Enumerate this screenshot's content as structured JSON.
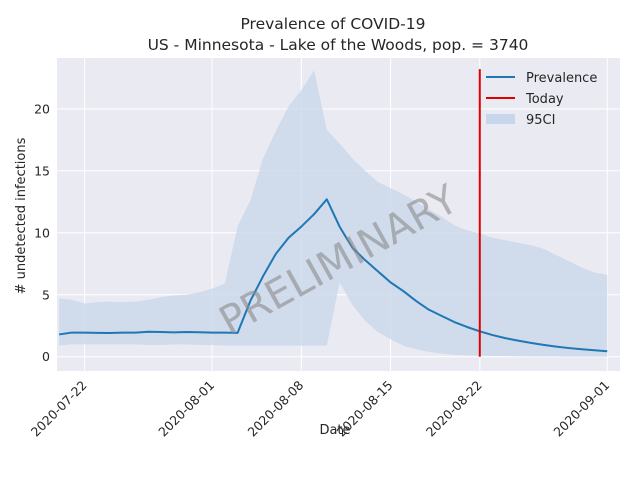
{
  "chart_data": {
    "type": "line",
    "title": "Prevalence of COVID-19",
    "subtitle": "US - Minnesota - Lake of the Woods, pop. = 3740",
    "xlabel": "Date",
    "ylabel": "# undetected infections",
    "xlim": [
      "2020-07-19T20:00",
      "2020-09-02T00:00"
    ],
    "ylim": [
      -1.15,
      24.1
    ],
    "x_ticks": [
      "2020-07-22",
      "2020-08-01",
      "2020-08-08",
      "2020-08-15",
      "2020-08-22",
      "2020-09-01"
    ],
    "y_ticks": [
      0,
      5,
      10,
      15,
      20
    ],
    "grid": true,
    "legend_position": "top-right",
    "watermark": "PRELIMINARY",
    "series": [
      {
        "name": "Prevalence",
        "color": "#1f77b4",
        "x": [
          "2020-07-20",
          "2020-07-21",
          "2020-07-22",
          "2020-07-23",
          "2020-07-24",
          "2020-07-25",
          "2020-07-26",
          "2020-07-27",
          "2020-07-28",
          "2020-07-29",
          "2020-07-30",
          "2020-07-31",
          "2020-08-01",
          "2020-08-02",
          "2020-08-03",
          "2020-08-04",
          "2020-08-05",
          "2020-08-06",
          "2020-08-07",
          "2020-08-08",
          "2020-08-09",
          "2020-08-10",
          "2020-08-11",
          "2020-08-12",
          "2020-08-13",
          "2020-08-14",
          "2020-08-15",
          "2020-08-16",
          "2020-08-17",
          "2020-08-18",
          "2020-08-19",
          "2020-08-20",
          "2020-08-21",
          "2020-08-22",
          "2020-08-23",
          "2020-08-24",
          "2020-08-25",
          "2020-08-26",
          "2020-08-27",
          "2020-08-28",
          "2020-08-29",
          "2020-08-30",
          "2020-08-31",
          "2020-09-01"
        ],
        "values": [
          1.8,
          1.95,
          1.95,
          1.93,
          1.92,
          1.95,
          1.95,
          2.02,
          2.0,
          1.97,
          2.0,
          1.98,
          1.95,
          1.95,
          1.93,
          4.5,
          6.5,
          8.3,
          9.6,
          10.5,
          11.5,
          12.7,
          10.5,
          8.8,
          7.8,
          6.9,
          6.0,
          5.3,
          4.5,
          3.8,
          3.3,
          2.8,
          2.4,
          2.05,
          1.75,
          1.5,
          1.3,
          1.12,
          0.96,
          0.82,
          0.7,
          0.6,
          0.52,
          0.44
        ]
      },
      {
        "name": "Today",
        "color": "#e00000",
        "x": [
          "2020-08-22",
          "2020-08-22"
        ],
        "values": [
          0,
          23.2
        ]
      }
    ],
    "band": {
      "name": "95CI",
      "color": "#c7d6ea",
      "x": [
        "2020-07-20",
        "2020-07-21",
        "2020-07-22",
        "2020-07-23",
        "2020-07-24",
        "2020-07-25",
        "2020-07-26",
        "2020-07-27",
        "2020-07-28",
        "2020-07-29",
        "2020-07-30",
        "2020-07-31",
        "2020-08-01",
        "2020-08-02",
        "2020-08-03",
        "2020-08-04",
        "2020-08-05",
        "2020-08-06",
        "2020-08-07",
        "2020-08-08",
        "2020-08-09",
        "2020-08-10",
        "2020-08-11",
        "2020-08-12",
        "2020-08-13",
        "2020-08-14",
        "2020-08-15",
        "2020-08-16",
        "2020-08-17",
        "2020-08-18",
        "2020-08-19",
        "2020-08-20",
        "2020-08-21",
        "2020-08-22",
        "2020-08-23",
        "2020-08-24",
        "2020-08-25",
        "2020-08-26",
        "2020-08-27",
        "2020-08-28",
        "2020-08-29",
        "2020-08-30",
        "2020-08-31",
        "2020-09-01"
      ],
      "lower": [
        0.9,
        1.0,
        1.0,
        1.0,
        1.0,
        1.0,
        1.0,
        0.95,
        0.95,
        1.0,
        1.0,
        0.95,
        0.95,
        0.9,
        0.9,
        0.9,
        0.9,
        0.9,
        0.9,
        0.9,
        0.9,
        0.9,
        6.0,
        4.2,
        2.9,
        2.0,
        1.4,
        0.9,
        0.6,
        0.4,
        0.25,
        0.15,
        0.1,
        0.08,
        0.06,
        0.05,
        0.04,
        0.03,
        0.02,
        0.02,
        0.01,
        0.01,
        0.01,
        0.01
      ],
      "upper": [
        4.7,
        4.6,
        4.3,
        4.4,
        4.45,
        4.4,
        4.45,
        4.6,
        4.8,
        4.95,
        5.0,
        5.2,
        5.5,
        5.9,
        10.5,
        12.6,
        16.0,
        18.2,
        20.2,
        21.5,
        23.1,
        18.3,
        17.2,
        16.0,
        15.0,
        14.1,
        13.6,
        13.1,
        12.5,
        11.9,
        11.3,
        10.6,
        10.2,
        9.95,
        9.6,
        9.4,
        9.2,
        9.0,
        8.7,
        8.2,
        7.7,
        7.2,
        6.8,
        6.6
      ]
    }
  }
}
